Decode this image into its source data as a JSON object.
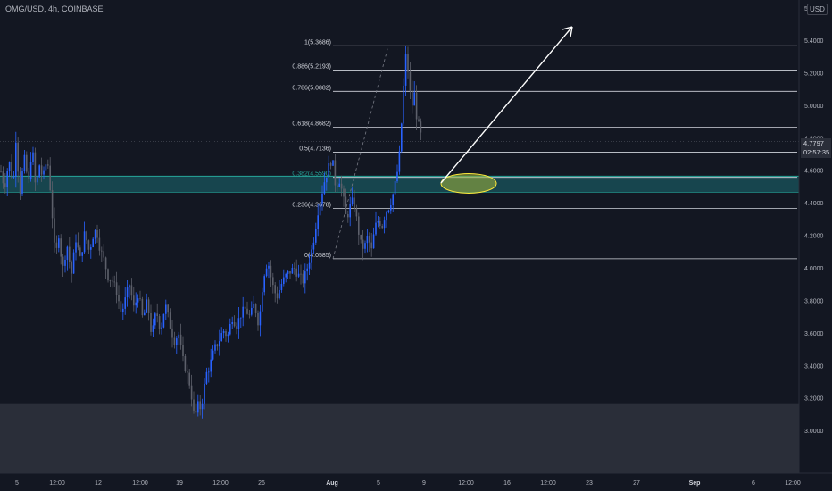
{
  "header": {
    "title": "OMG/USD, 4h, COINBASE",
    "currency_button": "USD",
    "top_tick": "5"
  },
  "price_tag": {
    "price": "4.7797",
    "countdown": "02:57:35"
  },
  "colors": {
    "background": "#131722",
    "candle_up": "#2962ff",
    "candle_down": "#5d606b",
    "fib_line": "#d1d4dc",
    "zone_fill": "#1b6b72",
    "zone_line": "#26a69a",
    "lower_box": "#2a2e39",
    "ellipse_fill": "#a3b43a",
    "ellipse_stroke": "#ffeb3b",
    "arrow": "#ffffff"
  },
  "chart_data": {
    "type": "candlestick",
    "symbol": "OMG/USD",
    "timeframe": "4h",
    "exchange": "COINBASE",
    "grid": false,
    "y_axis": {
      "ylim": [
        2.74,
        5.65
      ],
      "ticks": [
        "3.0000",
        "3.2000",
        "3.4000",
        "3.6000",
        "3.8000",
        "4.0000",
        "4.2000",
        "4.4000",
        "4.6000",
        "4.8000",
        "5.0000",
        "5.2000",
        "5.4000"
      ]
    },
    "x_axis": {
      "ticks": [
        "5",
        "12:00",
        "12",
        "12:00",
        "19",
        "12:00",
        "26",
        "Aug",
        "5",
        "9",
        "12:00",
        "16",
        "12:00",
        "23",
        "27",
        "Sep",
        "6",
        "12:00"
      ]
    },
    "last_price": 4.7797,
    "price_path": [
      [
        0,
        4.62
      ],
      [
        5,
        4.5
      ],
      [
        10,
        4.66
      ],
      [
        15,
        4.52
      ],
      [
        18,
        4.82
      ],
      [
        22,
        4.45
      ],
      [
        27,
        4.68
      ],
      [
        32,
        4.52
      ],
      [
        36,
        4.76
      ],
      [
        40,
        4.48
      ],
      [
        44,
        4.64
      ],
      [
        48,
        4.55
      ],
      [
        53,
        4.68
      ],
      [
        57,
        4.45
      ],
      [
        62,
        4.05
      ],
      [
        66,
        4.22
      ],
      [
        70,
        3.98
      ],
      [
        75,
        4.15
      ],
      [
        80,
        3.96
      ],
      [
        85,
        4.18
      ],
      [
        90,
        4.05
      ],
      [
        95,
        4.22
      ],
      [
        100,
        4.1
      ],
      [
        104,
        4.2
      ],
      [
        108,
        4.24
      ],
      [
        112,
        4.12
      ],
      [
        117,
        4.04
      ],
      [
        121,
        3.95
      ],
      [
        126,
        3.92
      ],
      [
        131,
        3.85
      ],
      [
        136,
        3.72
      ],
      [
        140,
        3.8
      ],
      [
        145,
        3.9
      ],
      [
        150,
        3.75
      ],
      [
        155,
        3.85
      ],
      [
        160,
        3.68
      ],
      [
        165,
        3.8
      ],
      [
        170,
        3.58
      ],
      [
        175,
        3.74
      ],
      [
        180,
        3.62
      ],
      [
        185,
        3.78
      ],
      [
        190,
        3.66
      ],
      [
        195,
        3.55
      ],
      [
        200,
        3.6
      ],
      [
        204,
        3.45
      ],
      [
        208,
        3.38
      ],
      [
        212,
        3.3
      ],
      [
        215,
        3.2
      ],
      [
        218,
        3.06
      ],
      [
        221,
        3.16
      ],
      [
        224,
        3.14
      ],
      [
        227,
        3.2
      ],
      [
        231,
        3.35
      ],
      [
        235,
        3.4
      ],
      [
        240,
        3.5
      ],
      [
        245,
        3.55
      ],
      [
        250,
        3.62
      ],
      [
        255,
        3.58
      ],
      [
        260,
        3.7
      ],
      [
        265,
        3.65
      ],
      [
        270,
        3.72
      ],
      [
        275,
        3.75
      ],
      [
        280,
        3.7
      ],
      [
        285,
        3.78
      ],
      [
        290,
        3.65
      ],
      [
        295,
        3.95
      ],
      [
        300,
        4.05
      ],
      [
        305,
        3.9
      ],
      [
        310,
        3.82
      ],
      [
        315,
        3.9
      ],
      [
        320,
        3.95
      ],
      [
        325,
        3.98
      ],
      [
        330,
        4.0
      ],
      [
        335,
        3.95
      ],
      [
        340,
        3.92
      ],
      [
        344,
        4.0
      ],
      [
        348,
        4.08
      ],
      [
        352,
        4.2
      ],
      [
        356,
        4.35
      ],
      [
        360,
        4.45
      ],
      [
        364,
        4.55
      ],
      [
        368,
        4.62
      ],
      [
        372,
        4.68
      ],
      [
        376,
        4.5
      ],
      [
        380,
        4.55
      ],
      [
        384,
        4.45
      ],
      [
        388,
        4.3
      ],
      [
        392,
        4.38
      ],
      [
        396,
        4.42
      ],
      [
        400,
        4.28
      ],
      [
        404,
        4.15
      ],
      [
        408,
        4.12
      ],
      [
        412,
        4.2
      ],
      [
        416,
        4.1
      ],
      [
        420,
        4.25
      ],
      [
        424,
        4.3
      ],
      [
        428,
        4.26
      ],
      [
        432,
        4.35
      ],
      [
        436,
        4.38
      ],
      [
        440,
        4.45
      ],
      [
        444,
        4.55
      ],
      [
        448,
        4.72
      ],
      [
        452,
        5.1
      ],
      [
        455,
        5.33
      ],
      [
        458,
        5.16
      ],
      [
        461,
        4.98
      ],
      [
        464,
        5.08
      ],
      [
        467,
        4.92
      ],
      [
        470,
        4.85
      ],
      [
        473,
        4.78
      ]
    ],
    "fibonacci": {
      "levels": [
        {
          "label": "1(5.3686)",
          "value": 5.3686
        },
        {
          "label": "0.886(5.2193)",
          "value": 5.2193
        },
        {
          "label": "0.786(5.0882)",
          "value": 5.0882
        },
        {
          "label": "0.618(4.8682)",
          "value": 4.8682
        },
        {
          "label": "0.5(4.7136)",
          "value": 4.7136
        },
        {
          "label": "0.382(4.5590)",
          "value": 4.559
        },
        {
          "label": "0.236(4.3678)",
          "value": 4.3678
        },
        {
          "label": "0(4.0585)",
          "value": 4.0585
        }
      ]
    },
    "zones": [
      {
        "from": 4.467,
        "to": 4.566
      },
      {
        "from": 2.74,
        "to": 3.17
      }
    ]
  }
}
